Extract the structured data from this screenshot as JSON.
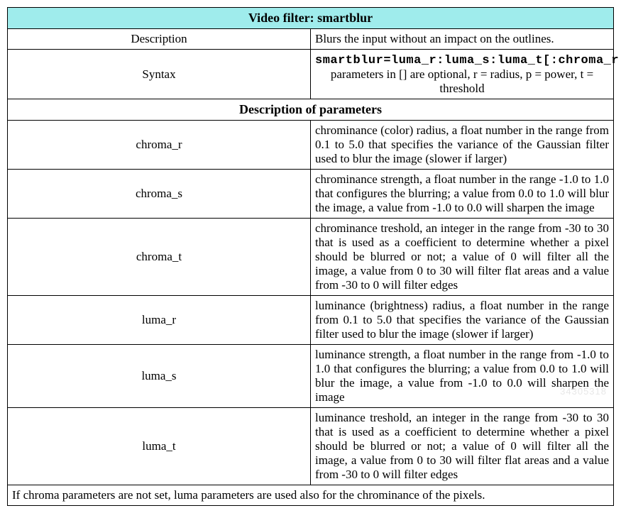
{
  "title": "Video filter: smartblur",
  "description_label": "Description",
  "description_text": "Blurs the input without an impact on the outlines.",
  "syntax_label": "Syntax",
  "syntax_code": "smartblur=luma_r:luma_s:luma_t[:chroma_r:chroma_s:chroma_t]",
  "syntax_note": "parameters in [] are optional, r = radius, p = power, t = threshold",
  "param_section_title": "Description of parameters",
  "params": [
    {
      "name": "chroma_r",
      "desc": "chrominance (color) radius, a float number in the range from 0.1 to 5.0 that specifies the variance of the Gaussian filter used to blur the image (slower if larger)"
    },
    {
      "name": "chroma_s",
      "desc": "chrominance strength, a float number in the range -1.0 to 1.0 that configures the blurring; a value from 0.0 to 1.0 will blur the image, a value from -1.0 to 0.0 will sharpen the image"
    },
    {
      "name": "chroma_t",
      "desc": "chrominance treshold, an integer in the range from -30 to 30 that is used as a coefficient to determine whether a pixel should be blurred or not; a value of 0 will filter all the image, a value from 0 to 30 will filter flat areas and a value from -30 to 0 will filter edges"
    },
    {
      "name": "luma_r",
      "desc": "luminance (brightness) radius, a float number in the range from 0.1 to 5.0 that specifies the variance of the Gaussian filter used to blur the image (slower if larger)"
    },
    {
      "name": "luma_s",
      "desc": "luminance strength, a float number in the range from -1.0 to 1.0 that configures the blurring; a value from 0.0 to 1.0 will blur the image, a value from -1.0 to 0.0 will sharpen the image"
    },
    {
      "name": "luma_t",
      "desc": "luminance treshold, an integer in the range from -30 to 30 that is used as a coefficient to determine whether a pixel should be blurred or not; a value of 0 will filter all the image, a value from 0 to 30 will filter flat areas and a value from -30 to 0 will filter edges"
    }
  ],
  "footer_note": "If chroma parameters are not set,  luma parameters are used also for the chrominance of the pixels.",
  "colors": {
    "header_bg": "#9fecec",
    "border": "#000000",
    "background": "#ffffff",
    "text": "#000000",
    "watermark": "#e8e8e8"
  },
  "watermark": "34305318"
}
